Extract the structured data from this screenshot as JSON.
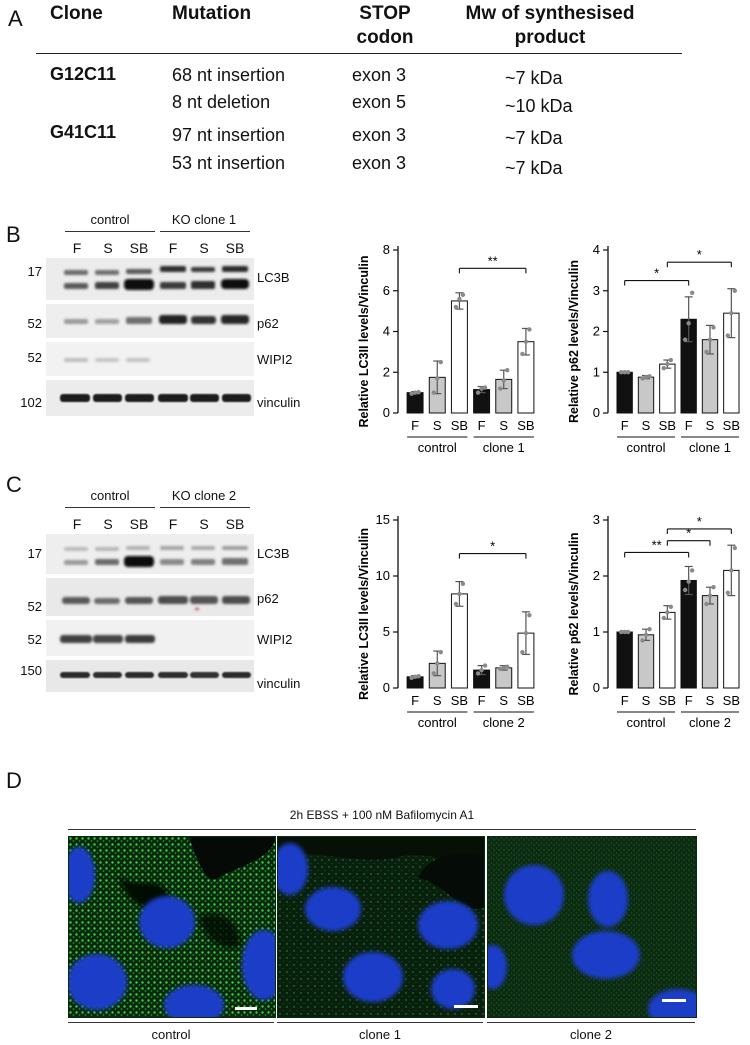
{
  "panel_labels": {
    "a": "A",
    "b": "B",
    "c": "C",
    "d": "D"
  },
  "table": {
    "headers": [
      "Clone",
      "Mutation",
      "STOP codon",
      "Mw of synthesised product"
    ],
    "header_lines": {
      "stop1": "STOP",
      "stop2": "codon",
      "mw1": "Mw of synthesised",
      "mw2": "product"
    },
    "rows": [
      {
        "clone": "G12C11",
        "mutation": "68 nt insertion",
        "stop": "exon 3",
        "mw": "~7 kDa"
      },
      {
        "clone": "",
        "mutation": "8 nt deletion",
        "stop": "exon 5",
        "mw": "~10 kDa"
      },
      {
        "clone": "G41C11",
        "mutation": "97 nt insertion",
        "stop": "exon 3",
        "mw": "~7 kDa"
      },
      {
        "clone": "",
        "mutation": "53 nt insertion",
        "stop": "exon 3",
        "mw": "~7 kDa"
      }
    ]
  },
  "blot_b": {
    "group_left": "control",
    "group_right": "KO clone 1",
    "lanes": [
      "F",
      "S",
      "SB",
      "F",
      "S",
      "SB"
    ],
    "mw": [
      "17",
      "52",
      "52",
      "102"
    ],
    "bands": [
      "LC3B",
      "p62",
      "WIPI2",
      "vinculin"
    ]
  },
  "blot_c": {
    "group_left": "control",
    "group_right": "KO clone 2",
    "lanes": [
      "F",
      "S",
      "SB",
      "F",
      "S",
      "SB"
    ],
    "mw": [
      "17",
      "52",
      "52",
      "150"
    ],
    "bands": [
      "LC3B",
      "p62",
      "WIPI2",
      "vinculin"
    ]
  },
  "microscopy": {
    "condition": "2h EBSS + 100 nM Bafilomycin A1",
    "captions": [
      "control",
      "clone 1",
      "clone 2"
    ]
  },
  "colors": {
    "black_bar": "#111111",
    "grey_bar": "#c8c8c8",
    "white_bar": "#ffffff",
    "nucleus": "#1f3ec8",
    "puncta": "#2fd03a"
  },
  "chart_data": [
    {
      "type": "bar",
      "id": "b-lc3",
      "ylabel": "Relative LC3II levels/Vinculin",
      "ylim": [
        0,
        8
      ],
      "yticks": [
        0,
        2,
        4,
        6,
        8
      ],
      "categories": [
        "F",
        "S",
        "SB",
        "F",
        "S",
        "SB"
      ],
      "groups": [
        "control",
        "clone 1"
      ],
      "values": [
        1.0,
        1.75,
        5.5,
        1.15,
        1.65,
        3.5
      ],
      "errors": [
        0.05,
        0.8,
        0.4,
        0.15,
        0.45,
        0.65
      ],
      "points": [
        [
          0.95,
          1.0,
          1.02
        ],
        [
          1.0,
          1.7,
          2.5
        ],
        [
          5.2,
          5.6,
          5.8
        ],
        [
          1.0,
          1.2,
          1.25
        ],
        [
          1.2,
          1.6,
          2.1
        ],
        [
          2.9,
          3.5,
          4.1
        ]
      ],
      "sig": [
        {
          "from": 2,
          "to": 5,
          "label": "**",
          "y": 7.1
        }
      ]
    },
    {
      "type": "bar",
      "id": "b-p62",
      "ylabel": "Relative p62 levels/Vinculin",
      "ylim": [
        0,
        4
      ],
      "yticks": [
        0,
        1,
        2,
        3,
        4
      ],
      "categories": [
        "F",
        "S",
        "SB",
        "F",
        "S",
        "SB"
      ],
      "groups": [
        "control",
        "clone 1"
      ],
      "values": [
        1.0,
        0.88,
        1.2,
        2.3,
        1.8,
        2.45
      ],
      "errors": [
        0.02,
        0.04,
        0.1,
        0.55,
        0.35,
        0.6
      ],
      "points": [
        [
          1.0,
          1.0,
          1.0
        ],
        [
          0.85,
          0.88,
          0.9
        ],
        [
          1.1,
          1.2,
          1.3
        ],
        [
          1.8,
          2.2,
          2.95
        ],
        [
          1.5,
          1.8,
          2.1
        ],
        [
          1.9,
          2.45,
          3.0
        ]
      ],
      "sig": [
        {
          "from": 0,
          "to": 3,
          "label": "*",
          "y": 3.25
        },
        {
          "from": 2,
          "to": 5,
          "label": "*",
          "y": 3.7
        }
      ]
    },
    {
      "type": "bar",
      "id": "c-lc3",
      "ylabel": "Relative LC3II levels/Vinculin",
      "ylim": [
        0,
        15
      ],
      "yticks": [
        0,
        5,
        10,
        15
      ],
      "categories": [
        "F",
        "S",
        "SB",
        "F",
        "S",
        "SB"
      ],
      "groups": [
        "control",
        "clone 2"
      ],
      "values": [
        1.0,
        2.2,
        8.4,
        1.6,
        1.8,
        4.9
      ],
      "errors": [
        0.1,
        1.1,
        1.1,
        0.4,
        0.2,
        1.9
      ],
      "points": [
        [
          0.9,
          1.0,
          1.05
        ],
        [
          1.3,
          2.2,
          3.2
        ],
        [
          7.5,
          8.4,
          9.3
        ],
        [
          1.3,
          1.6,
          2.0
        ],
        [
          1.7,
          1.8,
          1.9
        ],
        [
          3.2,
          4.9,
          6.5
        ]
      ],
      "sig": [
        {
          "from": 2,
          "to": 5,
          "label": "*",
          "y": 12
        }
      ]
    },
    {
      "type": "bar",
      "id": "c-p62",
      "ylabel": "Relative p62 levels/Vinculin",
      "ylim": [
        0,
        3
      ],
      "yticks": [
        0,
        1,
        2,
        3
      ],
      "categories": [
        "F",
        "S",
        "SB",
        "F",
        "S",
        "SB"
      ],
      "groups": [
        "control",
        "clone 2"
      ],
      "values": [
        1.0,
        0.95,
        1.35,
        1.92,
        1.65,
        2.1
      ],
      "errors": [
        0.02,
        0.1,
        0.12,
        0.25,
        0.15,
        0.45
      ],
      "points": [
        [
          1.0,
          1.0,
          1.0
        ],
        [
          0.85,
          0.95,
          1.05
        ],
        [
          1.25,
          1.35,
          1.45
        ],
        [
          1.75,
          1.9,
          2.1
        ],
        [
          1.5,
          1.65,
          1.8
        ],
        [
          1.7,
          2.1,
          2.5
        ]
      ],
      "sig": [
        {
          "from": 0,
          "to": 3,
          "label": "**",
          "y": 2.42
        },
        {
          "from": 2,
          "to": 4,
          "label": "*",
          "y": 2.63
        },
        {
          "from": 2,
          "to": 5,
          "label": "*",
          "y": 2.84
        }
      ]
    }
  ]
}
